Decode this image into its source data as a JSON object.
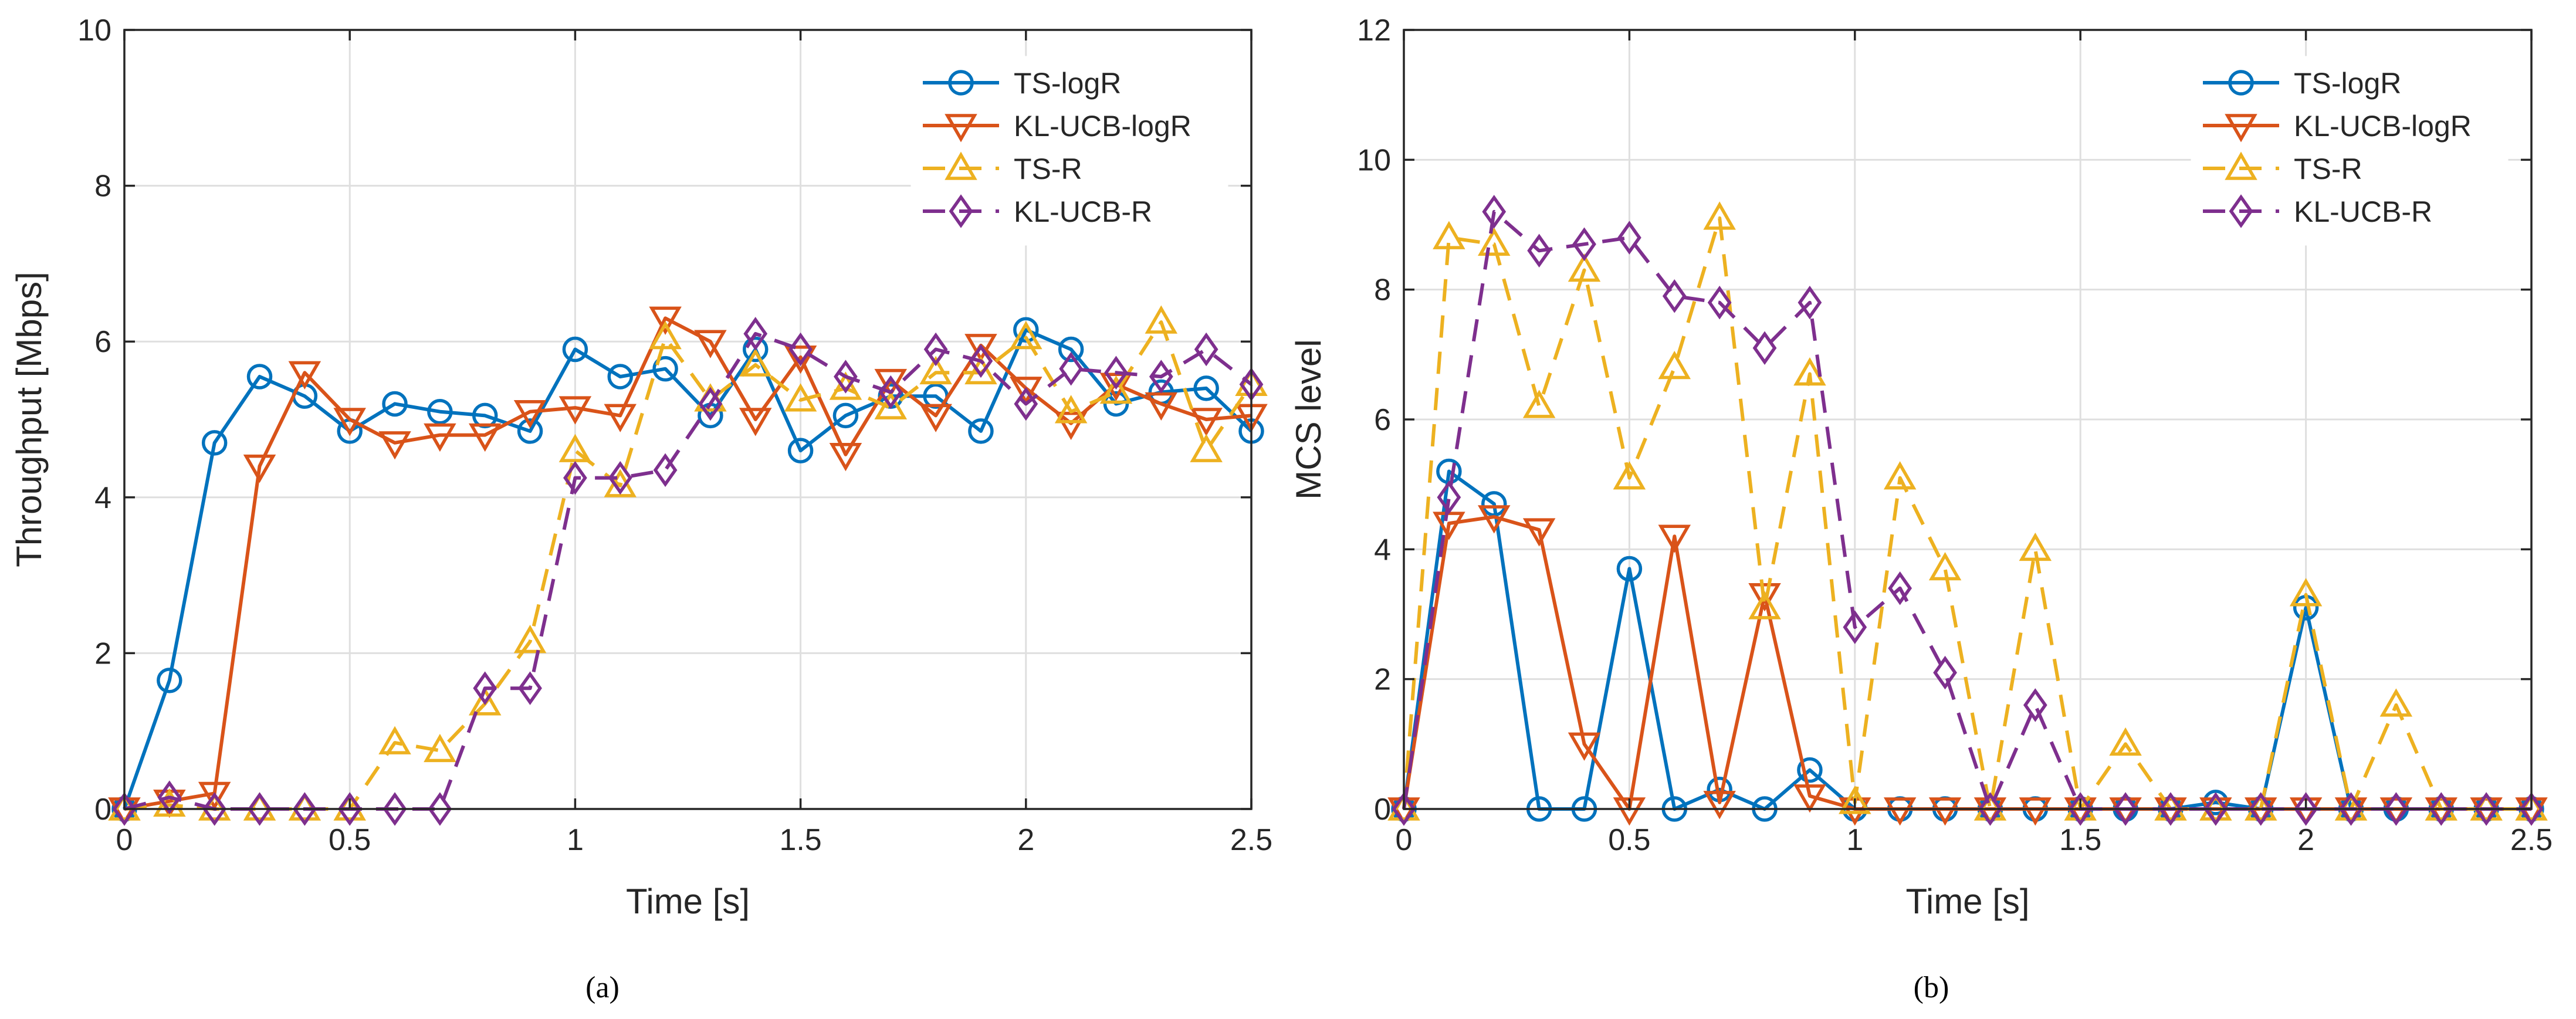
{
  "figure": {
    "captions": [
      "(a)",
      "(b)"
    ]
  },
  "chart_data": [
    {
      "type": "line",
      "caption": "(a)",
      "title": "",
      "xlabel": "Time [s]",
      "ylabel": "Throughput [Mbps]",
      "xlim": [
        0,
        2.5
      ],
      "ylim": [
        0,
        10
      ],
      "xticks": [
        0,
        0.5,
        1,
        1.5,
        2,
        2.5
      ],
      "xtick_labels": [
        "0",
        "0.5",
        "1",
        "1.5",
        "2",
        "2.5"
      ],
      "yticks": [
        0,
        2,
        4,
        6,
        8,
        10
      ],
      "ytick_labels": [
        "0",
        "2",
        "4",
        "6",
        "8",
        "10"
      ],
      "grid": true,
      "legend": "top-right",
      "x": [
        0,
        0.1,
        0.2,
        0.3,
        0.4,
        0.5,
        0.6,
        0.7,
        0.8,
        0.9,
        1.0,
        1.1,
        1.2,
        1.3,
        1.4,
        1.5,
        1.6,
        1.7,
        1.8,
        1.9,
        2.0,
        2.1,
        2.2,
        2.3,
        2.4,
        2.5
      ],
      "series": [
        {
          "name": "TS-logR",
          "color": "#0072BD",
          "linestyle": "solid",
          "marker": "circle",
          "values": [
            0,
            1.65,
            4.7,
            5.55,
            5.3,
            4.85,
            5.2,
            5.1,
            5.05,
            4.85,
            5.9,
            5.55,
            5.65,
            5.05,
            5.9,
            4.6,
            5.05,
            5.3,
            5.3,
            4.85,
            6.15,
            5.9,
            5.2,
            5.35,
            5.4,
            4.85
          ]
        },
        {
          "name": "KL-UCB-logR",
          "color": "#D95319",
          "linestyle": "solid",
          "marker": "triangle-down",
          "values": [
            0,
            0.1,
            0.2,
            4.4,
            5.6,
            5.0,
            4.7,
            4.8,
            4.8,
            5.1,
            5.15,
            5.05,
            6.3,
            6.0,
            5.0,
            5.8,
            4.55,
            5.5,
            5.05,
            5.95,
            5.4,
            4.95,
            5.45,
            5.2,
            5.0,
            5.05
          ]
        },
        {
          "name": "TS-R",
          "color": "#EDB120",
          "linestyle": "dashed",
          "marker": "triangle-up",
          "values": [
            0,
            0.05,
            0,
            0,
            0,
            0,
            0.85,
            0.75,
            1.35,
            2.15,
            4.6,
            4.15,
            6.05,
            5.25,
            5.7,
            5.25,
            5.4,
            5.15,
            5.6,
            5.6,
            6.05,
            5.1,
            5.35,
            6.25,
            4.6,
            5.45
          ]
        },
        {
          "name": "KL-UCB-R",
          "color": "#7E2F8E",
          "linestyle": "dashed",
          "marker": "diamond",
          "values": [
            0,
            0.15,
            0,
            0,
            0,
            0,
            0,
            0,
            1.55,
            1.55,
            4.25,
            4.25,
            4.35,
            5.2,
            6.1,
            5.9,
            5.55,
            5.35,
            5.9,
            5.75,
            5.2,
            5.65,
            5.6,
            5.55,
            5.9,
            5.45
          ]
        }
      ]
    },
    {
      "type": "line",
      "caption": "(b)",
      "title": "",
      "xlabel": "Time [s]",
      "ylabel": "MCS level",
      "xlim": [
        0,
        2.5
      ],
      "ylim": [
        0,
        12
      ],
      "xticks": [
        0,
        0.5,
        1,
        1.5,
        2,
        2.5
      ],
      "xtick_labels": [
        "0",
        "0.5",
        "1",
        "1.5",
        "2",
        "2.5"
      ],
      "yticks": [
        0,
        2,
        4,
        6,
        8,
        10,
        12
      ],
      "ytick_labels": [
        "0",
        "2",
        "4",
        "6",
        "8",
        "10",
        "12"
      ],
      "grid": true,
      "legend": "top-right",
      "x": [
        0,
        0.1,
        0.2,
        0.3,
        0.4,
        0.5,
        0.6,
        0.7,
        0.8,
        0.9,
        1.0,
        1.1,
        1.2,
        1.3,
        1.4,
        1.5,
        1.6,
        1.7,
        1.8,
        1.9,
        2.0,
        2.1,
        2.2,
        2.3,
        2.4,
        2.5
      ],
      "series": [
        {
          "name": "TS-logR",
          "color": "#0072BD",
          "linestyle": "solid",
          "marker": "circle",
          "values": [
            0,
            5.2,
            4.7,
            0,
            0,
            3.7,
            0,
            0.3,
            0,
            0.6,
            0,
            0,
            0,
            0,
            0,
            0,
            0,
            0,
            0.1,
            0,
            3.1,
            0,
            0,
            0,
            0,
            0
          ]
        },
        {
          "name": "KL-UCB-logR",
          "color": "#D95319",
          "linestyle": "solid",
          "marker": "triangle-down",
          "values": [
            0,
            4.4,
            4.5,
            4.3,
            1.0,
            0,
            4.2,
            0.1,
            3.3,
            0.2,
            0,
            0,
            0,
            0,
            0,
            0,
            0,
            0,
            0,
            0,
            0,
            0,
            0,
            0,
            0,
            0
          ]
        },
        {
          "name": "TS-R",
          "color": "#EDB120",
          "linestyle": "dashed",
          "marker": "triangle-up",
          "values": [
            0,
            8.8,
            8.7,
            6.2,
            8.3,
            5.1,
            6.8,
            9.1,
            3.1,
            6.7,
            0.1,
            5.1,
            3.7,
            0,
            4.0,
            0,
            1.0,
            0,
            0,
            0,
            3.3,
            0,
            1.6,
            0,
            0,
            0
          ]
        },
        {
          "name": "KL-UCB-R",
          "color": "#7E2F8E",
          "linestyle": "dashed",
          "marker": "diamond",
          "values": [
            0,
            4.8,
            9.2,
            8.6,
            8.7,
            8.8,
            7.9,
            7.8,
            7.1,
            7.8,
            2.8,
            3.4,
            2.1,
            0,
            1.6,
            0,
            0,
            0,
            0,
            0,
            0,
            0,
            0,
            0,
            0,
            0
          ]
        }
      ]
    }
  ]
}
